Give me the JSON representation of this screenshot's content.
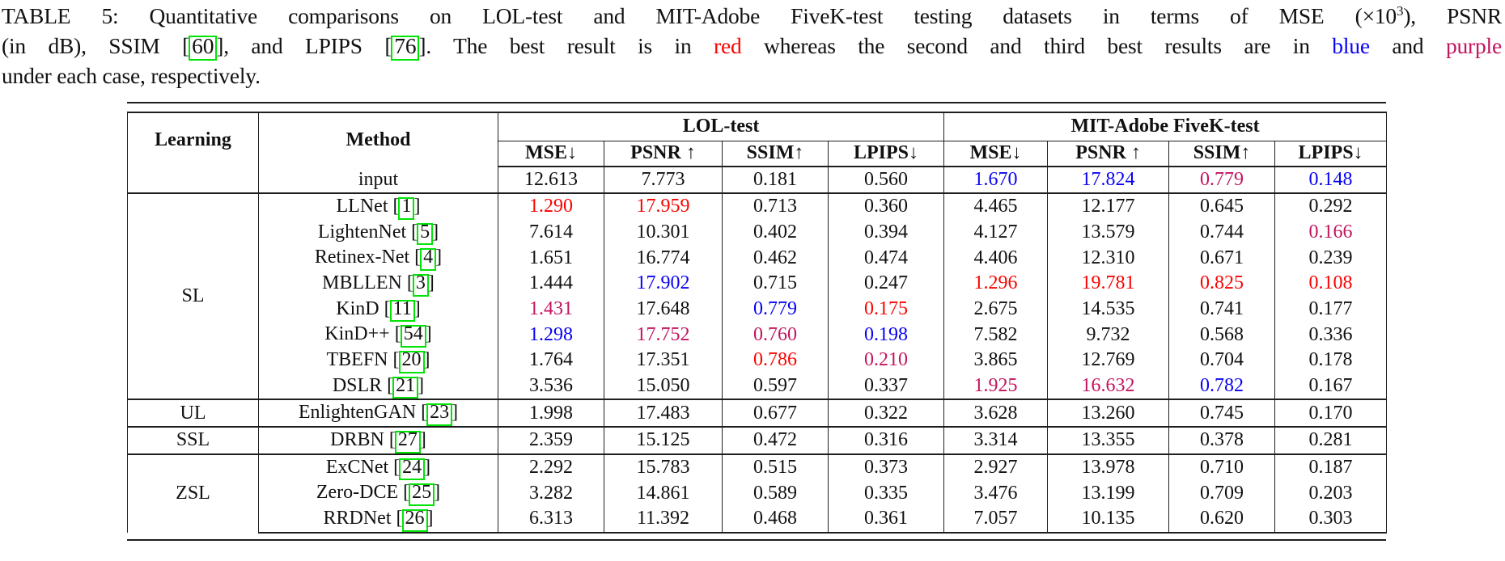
{
  "colors": {
    "red": "#f80400",
    "blue": "#0903f2",
    "purple": "#c3145e",
    "green_box": "#00e405",
    "rule": "#1e1e1e",
    "text": "#111111"
  },
  "caption": {
    "lines": [
      {
        "justify": true,
        "segments": [
          {
            "text": "TABLE 5: Quantitative comparisons on LOL-test and MIT-Adobe FiveK-test testing datasets in terms of MSE ("
          },
          {
            "text": "×10"
          },
          {
            "text": "3",
            "sup": true
          },
          {
            "text": "), PSNR"
          }
        ]
      },
      {
        "justify": true,
        "segments": [
          {
            "text": "(in dB), SSIM ["
          },
          {
            "text": "60",
            "box": true
          },
          {
            "text": "], and LPIPS ["
          },
          {
            "text": "76",
            "box": true
          },
          {
            "text": "]. The best result is in "
          },
          {
            "text": "red",
            "color": "red"
          },
          {
            "text": " whereas the second and third best results are in "
          },
          {
            "text": "blue",
            "color": "blue"
          },
          {
            "text": " and "
          },
          {
            "text": "purple",
            "color": "purple"
          }
        ]
      },
      {
        "justify": false,
        "segments": [
          {
            "text": "under each case, respectively."
          }
        ]
      }
    ]
  },
  "table": {
    "corner": {
      "learning": "Learning",
      "method": "Method"
    },
    "sections": [
      {
        "label": "LOL-test",
        "metrics": [
          "MSE↓",
          "PSNR ↑",
          "SSIM↑",
          "LPIPS↓"
        ]
      },
      {
        "label": "MIT-Adobe FiveK-test",
        "metrics": [
          "MSE↓",
          "PSNR ↑",
          "SSIM↑",
          "LPIPS↓"
        ]
      }
    ],
    "input_row": {
      "method": {
        "name": "input"
      },
      "values": [
        {
          "v": "12.613"
        },
        {
          "v": "7.773"
        },
        {
          "v": "0.181"
        },
        {
          "v": "0.560"
        },
        {
          "v": "1.670",
          "c": "blue"
        },
        {
          "v": "17.824",
          "c": "blue"
        },
        {
          "v": "0.779",
          "c": "purple"
        },
        {
          "v": "0.148",
          "c": "blue"
        }
      ]
    },
    "groups": [
      {
        "learning": "SL",
        "rows": [
          {
            "method": {
              "name": "LLNet",
              "cite": "1"
            },
            "values": [
              {
                "v": "1.290",
                "c": "red"
              },
              {
                "v": "17.959",
                "c": "red"
              },
              {
                "v": "0.713"
              },
              {
                "v": "0.360"
              },
              {
                "v": "4.465"
              },
              {
                "v": "12.177"
              },
              {
                "v": "0.645"
              },
              {
                "v": "0.292"
              }
            ]
          },
          {
            "method": {
              "name": "LightenNet",
              "cite": "5"
            },
            "values": [
              {
                "v": "7.614"
              },
              {
                "v": "10.301"
              },
              {
                "v": "0.402"
              },
              {
                "v": "0.394"
              },
              {
                "v": "4.127"
              },
              {
                "v": "13.579"
              },
              {
                "v": "0.744"
              },
              {
                "v": "0.166",
                "c": "purple"
              }
            ]
          },
          {
            "method": {
              "name": "Retinex-Net",
              "cite": "4"
            },
            "values": [
              {
                "v": "1.651"
              },
              {
                "v": "16.774"
              },
              {
                "v": "0.462"
              },
              {
                "v": "0.474"
              },
              {
                "v": "4.406"
              },
              {
                "v": "12.310"
              },
              {
                "v": "0.671"
              },
              {
                "v": "0.239"
              }
            ]
          },
          {
            "method": {
              "name": "MBLLEN",
              "cite": "3"
            },
            "values": [
              {
                "v": "1.444"
              },
              {
                "v": "17.902",
                "c": "blue"
              },
              {
                "v": "0.715"
              },
              {
                "v": "0.247"
              },
              {
                "v": "1.296",
                "c": "red"
              },
              {
                "v": "19.781",
                "c": "red"
              },
              {
                "v": "0.825",
                "c": "red"
              },
              {
                "v": "0.108",
                "c": "red"
              }
            ]
          },
          {
            "method": {
              "name": "KinD",
              "cite": "11"
            },
            "values": [
              {
                "v": "1.431",
                "c": "purple"
              },
              {
                "v": "17.648"
              },
              {
                "v": "0.779",
                "c": "blue"
              },
              {
                "v": "0.175",
                "c": "red"
              },
              {
                "v": "2.675"
              },
              {
                "v": "14.535"
              },
              {
                "v": "0.741"
              },
              {
                "v": "0.177"
              }
            ]
          },
          {
            "method": {
              "name": "KinD++",
              "cite": "54"
            },
            "values": [
              {
                "v": "1.298",
                "c": "blue"
              },
              {
                "v": "17.752",
                "c": "purple"
              },
              {
                "v": "0.760",
                "c": "purple"
              },
              {
                "v": "0.198",
                "c": "blue"
              },
              {
                "v": "7.582"
              },
              {
                "v": "9.732"
              },
              {
                "v": "0.568"
              },
              {
                "v": "0.336"
              }
            ]
          },
          {
            "method": {
              "name": "TBEFN",
              "cite": "20"
            },
            "values": [
              {
                "v": "1.764"
              },
              {
                "v": "17.351"
              },
              {
                "v": "0.786",
                "c": "red"
              },
              {
                "v": "0.210",
                "c": "purple"
              },
              {
                "v": "3.865"
              },
              {
                "v": "12.769"
              },
              {
                "v": "0.704"
              },
              {
                "v": "0.178"
              }
            ]
          },
          {
            "method": {
              "name": "DSLR",
              "cite": "21"
            },
            "values": [
              {
                "v": "3.536"
              },
              {
                "v": "15.050"
              },
              {
                "v": "0.597"
              },
              {
                "v": "0.337"
              },
              {
                "v": "1.925",
                "c": "purple"
              },
              {
                "v": "16.632",
                "c": "purple"
              },
              {
                "v": "0.782",
                "c": "blue"
              },
              {
                "v": "0.167"
              }
            ]
          }
        ]
      },
      {
        "learning": "UL",
        "rows": [
          {
            "method": {
              "name": "EnlightenGAN",
              "cite": "23"
            },
            "values": [
              {
                "v": "1.998"
              },
              {
                "v": "17.483"
              },
              {
                "v": "0.677"
              },
              {
                "v": "0.322"
              },
              {
                "v": "3.628"
              },
              {
                "v": "13.260"
              },
              {
                "v": "0.745"
              },
              {
                "v": "0.170"
              }
            ]
          }
        ]
      },
      {
        "learning": "SSL",
        "rows": [
          {
            "method": {
              "name": "DRBN",
              "cite": "27"
            },
            "values": [
              {
                "v": "2.359"
              },
              {
                "v": "15.125"
              },
              {
                "v": "0.472"
              },
              {
                "v": "0.316"
              },
              {
                "v": "3.314"
              },
              {
                "v": "13.355"
              },
              {
                "v": "0.378"
              },
              {
                "v": "0.281"
              }
            ]
          }
        ]
      },
      {
        "learning": "ZSL",
        "rows": [
          {
            "method": {
              "name": "ExCNet",
              "cite": "24"
            },
            "values": [
              {
                "v": "2.292"
              },
              {
                "v": "15.783"
              },
              {
                "v": "0.515"
              },
              {
                "v": "0.373"
              },
              {
                "v": "2.927"
              },
              {
                "v": "13.978"
              },
              {
                "v": "0.710"
              },
              {
                "v": "0.187"
              }
            ]
          },
          {
            "method": {
              "name": "Zero-DCE",
              "cite": "25"
            },
            "values": [
              {
                "v": "3.282"
              },
              {
                "v": "14.861"
              },
              {
                "v": "0.589"
              },
              {
                "v": "0.335"
              },
              {
                "v": "3.476"
              },
              {
                "v": "13.199"
              },
              {
                "v": "0.709"
              },
              {
                "v": "0.203"
              }
            ]
          },
          {
            "method": {
              "name": "RRDNet",
              "cite": "26"
            },
            "values": [
              {
                "v": "6.313"
              },
              {
                "v": "11.392"
              },
              {
                "v": "0.468"
              },
              {
                "v": "0.361"
              },
              {
                "v": "7.057"
              },
              {
                "v": "10.135"
              },
              {
                "v": "0.620"
              },
              {
                "v": "0.303"
              }
            ]
          }
        ]
      }
    ]
  }
}
